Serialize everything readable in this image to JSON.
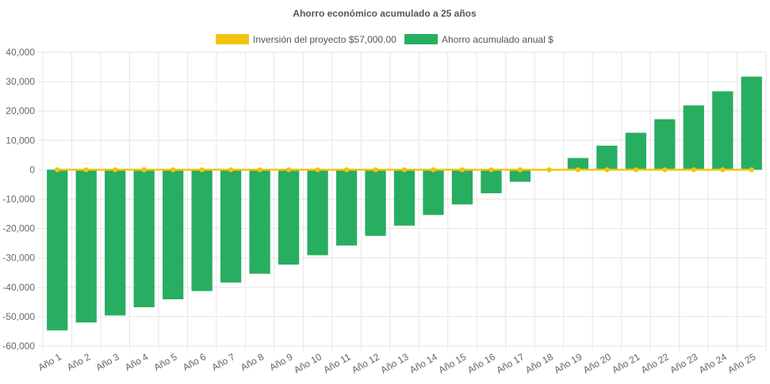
{
  "chart_data": {
    "type": "bar",
    "title": "Ahorro económico acumulado a 25 años",
    "categories": [
      "Año 1",
      "Año 2",
      "Año 3",
      "Año 4",
      "Año 5",
      "Año 6",
      "Año 7",
      "Año 8",
      "Año 9",
      "Año 10",
      "Año 11",
      "Año 12",
      "Año 13",
      "Año 14",
      "Año 15",
      "Año 16",
      "Año 17",
      "Año 18",
      "Año 19",
      "Año 20",
      "Año 21",
      "Año 22",
      "Año 23",
      "Año 24",
      "Año 25"
    ],
    "series": [
      {
        "name": "Inversión del proyecto $57,000.00",
        "kind": "line",
        "color": "#f1c40f",
        "values": [
          0,
          0,
          0,
          0,
          0,
          0,
          0,
          0,
          0,
          0,
          0,
          0,
          0,
          0,
          0,
          0,
          0,
          0,
          0,
          0,
          0,
          0,
          0,
          0,
          0
        ]
      },
      {
        "name": "Ahorro acumulado anual $",
        "kind": "bar",
        "color": "#27ae60",
        "values": [
          -54700,
          -52000,
          -49600,
          -46800,
          -44100,
          -41300,
          -38400,
          -35400,
          -32300,
          -29100,
          -25800,
          -22500,
          -19000,
          -15400,
          -11800,
          -8000,
          -4100,
          0,
          4000,
          8200,
          12600,
          17200,
          21900,
          26700,
          31700
        ]
      }
    ],
    "yticks": [
      "40,000",
      "30,000",
      "20,000",
      "10,000",
      "0",
      "-10,000",
      "-20,000",
      "-30,000",
      "-40,000",
      "-50,000",
      "-60,000"
    ],
    "ylim": [
      -60000,
      40000
    ],
    "xlabel": "",
    "ylabel": "",
    "grid": true,
    "legend": "top-center"
  }
}
